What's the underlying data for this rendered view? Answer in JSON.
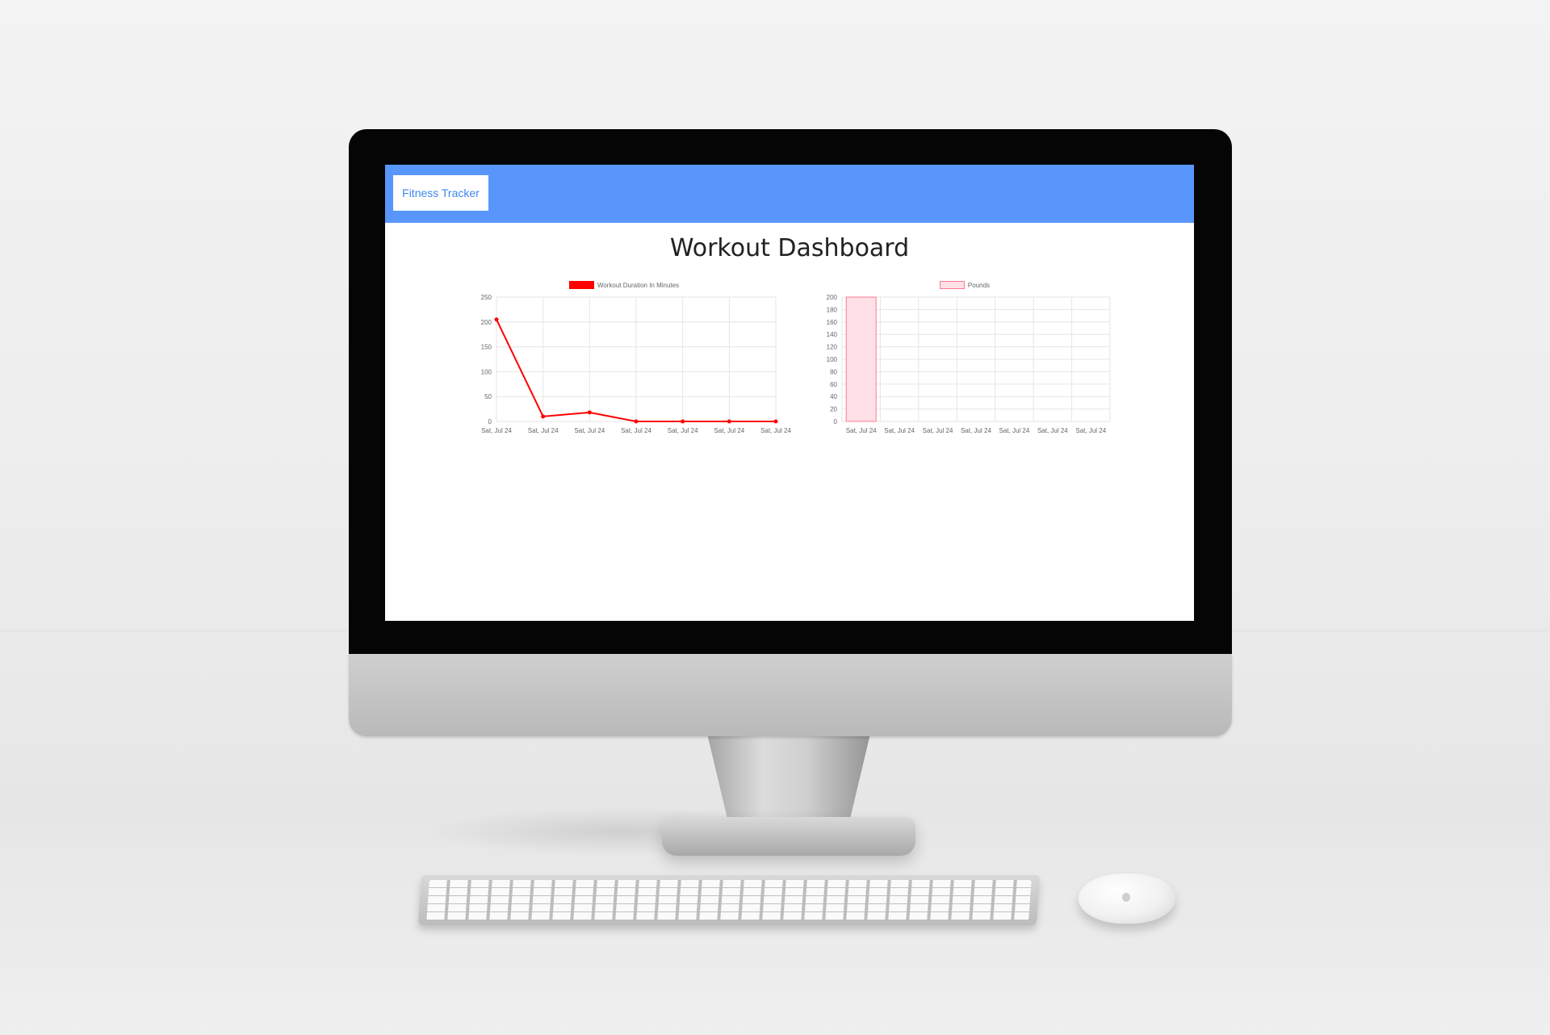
{
  "app": {
    "brand": "Fitness Tracker",
    "page_title": "Workout Dashboard"
  },
  "colors": {
    "navbar": "#5896fb",
    "line_series": "#ff0000",
    "bar_fill": "#ffe0e6",
    "bar_border": "#ff7a93"
  },
  "chart_data": [
    {
      "type": "line",
      "categories": [
        "Sat, Jul 24",
        "Sat, Jul 24",
        "Sat, Jul 24",
        "Sat, Jul 24",
        "Sat, Jul 24",
        "Sat, Jul 24",
        "Sat, Jul 24"
      ],
      "series": [
        {
          "name": "Workout Duration In Minutes",
          "values": [
            205,
            10,
            18,
            0,
            0,
            0,
            0
          ]
        }
      ],
      "title": "",
      "xlabel": "",
      "ylabel": "",
      "ylim": [
        0,
        250
      ],
      "yticks": [
        "250",
        "200",
        "150",
        "100",
        "50",
        "0"
      ],
      "grid": true,
      "legend": "top-center"
    },
    {
      "type": "bar",
      "categories": [
        "Sat, Jul 24",
        "Sat, Jul 24",
        "Sat, Jul 24",
        "Sat, Jul 24",
        "Sat, Jul 24",
        "Sat, Jul 24",
        "Sat, Jul 24"
      ],
      "series": [
        {
          "name": "Pounds",
          "values": [
            200,
            0,
            0,
            0,
            0,
            0,
            0
          ]
        }
      ],
      "title": "",
      "xlabel": "",
      "ylabel": "",
      "ylim": [
        0,
        200
      ],
      "yticks": [
        "200",
        "180",
        "160",
        "140",
        "120",
        "100",
        "80",
        "60",
        "40",
        "20",
        "0"
      ],
      "grid": true,
      "legend": "top-center"
    }
  ]
}
